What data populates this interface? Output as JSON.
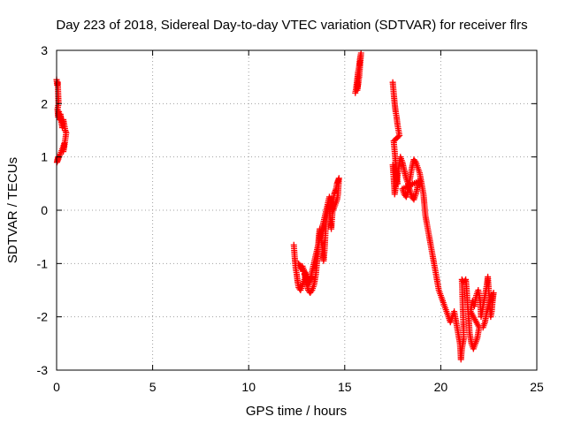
{
  "chart_data": {
    "type": "scatter",
    "title": "Day 223 of 2018, Sidereal Day-to-day VTEC variation (SDTVAR) for receiver flrs",
    "xlabel": "GPS time / hours",
    "ylabel": "SDTVAR / TECUs",
    "xlim": [
      0,
      25
    ],
    "ylim": [
      -3,
      3
    ],
    "xticks": [
      0,
      5,
      10,
      15,
      20,
      25
    ],
    "yticks": [
      -3,
      -2,
      -1,
      0,
      1,
      2,
      3
    ],
    "grid": true,
    "marker": "+",
    "color": "#ff0000",
    "segments": [
      [
        [
          0.0,
          2.45
        ],
        [
          0.03,
          2.35
        ],
        [
          0.06,
          2.4
        ],
        [
          0.08,
          2.2
        ],
        [
          0.1,
          2.0
        ],
        [
          0.05,
          1.9
        ],
        [
          0.08,
          1.75
        ],
        [
          0.12,
          1.85
        ],
        [
          0.15,
          1.7
        ],
        [
          0.2,
          1.8
        ],
        [
          0.25,
          1.65
        ],
        [
          0.3,
          1.55
        ],
        [
          0.35,
          1.7
        ],
        [
          0.4,
          1.6
        ],
        [
          0.45,
          1.5
        ],
        [
          0.5,
          1.45
        ],
        [
          0.4,
          1.2
        ],
        [
          0.35,
          1.1
        ],
        [
          0.4,
          1.25
        ],
        [
          0.3,
          1.15
        ],
        [
          0.02,
          0.9
        ],
        [
          0.05,
          0.95
        ],
        [
          0.08,
          1.0
        ]
      ],
      [
        [
          12.35,
          -0.65
        ],
        [
          12.4,
          -0.9
        ],
        [
          12.45,
          -1.1
        ],
        [
          12.5,
          -1.2
        ],
        [
          12.55,
          -1.35
        ],
        [
          12.6,
          -1.45
        ],
        [
          12.7,
          -1.5
        ],
        [
          12.8,
          -1.4
        ],
        [
          12.9,
          -1.3
        ],
        [
          13.0,
          -1.2
        ],
        [
          12.6,
          -1.0
        ],
        [
          12.7,
          -1.1
        ],
        [
          12.8,
          -1.05
        ],
        [
          12.9,
          -1.15
        ],
        [
          13.0,
          -1.35
        ],
        [
          13.1,
          -1.5
        ],
        [
          13.2,
          -1.55
        ],
        [
          13.3,
          -1.5
        ],
        [
          13.4,
          -1.4
        ],
        [
          13.5,
          -1.2
        ],
        [
          13.55,
          -1.0
        ],
        [
          13.6,
          -0.8
        ],
        [
          13.65,
          -0.5
        ],
        [
          13.7,
          -0.35
        ],
        [
          13.75,
          -0.45
        ],
        [
          13.8,
          -0.6
        ],
        [
          13.85,
          -0.8
        ],
        [
          13.9,
          -0.95
        ],
        [
          13.95,
          -0.75
        ],
        [
          14.0,
          -0.4
        ],
        [
          14.05,
          -0.1
        ],
        [
          14.1,
          0.0
        ],
        [
          14.15,
          0.1
        ],
        [
          14.2,
          0.05
        ],
        [
          14.25,
          -0.2
        ],
        [
          14.3,
          -0.35
        ],
        [
          14.35,
          -0.1
        ],
        [
          14.4,
          0.2
        ],
        [
          14.45,
          0.3
        ],
        [
          14.5,
          0.35
        ],
        [
          14.55,
          0.4
        ],
        [
          14.6,
          0.5
        ],
        [
          14.65,
          0.55
        ],
        [
          14.7,
          0.6
        ],
        [
          14.65,
          0.3
        ],
        [
          14.6,
          0.2
        ],
        [
          14.5,
          0.1
        ],
        [
          14.4,
          0.0
        ],
        [
          14.3,
          0.15
        ],
        [
          14.2,
          0.25
        ],
        [
          13.2,
          -1.3
        ],
        [
          13.3,
          -1.25
        ],
        [
          13.1,
          -1.4
        ],
        [
          12.9,
          -1.2
        ],
        [
          13.05,
          -1.25
        ]
      ],
      [
        [
          15.55,
          2.2
        ],
        [
          15.6,
          2.3
        ],
        [
          15.65,
          2.45
        ],
        [
          15.7,
          2.6
        ],
        [
          15.75,
          2.7
        ],
        [
          15.8,
          2.85
        ],
        [
          15.85,
          2.95
        ],
        [
          15.75,
          2.5
        ],
        [
          15.65,
          2.25
        ],
        [
          15.7,
          2.4
        ]
      ],
      [
        [
          17.5,
          2.4
        ],
        [
          17.55,
          2.2
        ],
        [
          17.6,
          2.0
        ],
        [
          17.65,
          1.85
        ],
        [
          17.7,
          1.75
        ],
        [
          17.75,
          1.6
        ],
        [
          17.8,
          1.5
        ],
        [
          17.85,
          1.4
        ],
        [
          17.55,
          1.3
        ],
        [
          17.6,
          1.1
        ],
        [
          17.65,
          0.9
        ],
        [
          17.7,
          0.7
        ],
        [
          17.75,
          0.5
        ],
        [
          17.5,
          0.85
        ],
        [
          17.55,
          0.6
        ],
        [
          17.6,
          0.3
        ],
        [
          17.9,
          1.0
        ],
        [
          18.0,
          0.9
        ],
        [
          18.1,
          0.75
        ],
        [
          18.2,
          0.6
        ],
        [
          18.3,
          0.5
        ],
        [
          18.4,
          0.35
        ],
        [
          18.5,
          0.25
        ],
        [
          18.6,
          0.2
        ],
        [
          18.7,
          0.3
        ],
        [
          18.8,
          0.45
        ],
        [
          18.9,
          0.55
        ],
        [
          18.0,
          0.4
        ],
        [
          18.1,
          0.3
        ],
        [
          18.2,
          0.25
        ],
        [
          18.3,
          0.35
        ],
        [
          18.4,
          0.6
        ],
        [
          18.5,
          0.8
        ],
        [
          18.6,
          0.95
        ],
        [
          18.7,
          0.9
        ],
        [
          18.8,
          0.8
        ],
        [
          18.9,
          0.7
        ],
        [
          19.0,
          0.5
        ],
        [
          19.1,
          0.3
        ],
        [
          19.15,
          0.1
        ],
        [
          19.2,
          -0.1
        ],
        [
          19.3,
          -0.3
        ],
        [
          19.4,
          -0.5
        ],
        [
          19.5,
          -0.7
        ],
        [
          19.6,
          -0.9
        ],
        [
          19.7,
          -1.1
        ],
        [
          19.8,
          -1.3
        ],
        [
          19.9,
          -1.5
        ],
        [
          20.0,
          -1.6
        ],
        [
          20.1,
          -1.7
        ],
        [
          20.2,
          -1.8
        ],
        [
          20.3,
          -1.9
        ],
        [
          20.4,
          -2.0
        ],
        [
          20.5,
          -2.1
        ],
        [
          20.6,
          -2.0
        ],
        [
          20.7,
          -1.9
        ],
        [
          20.8,
          -2.1
        ],
        [
          20.9,
          -2.3
        ],
        [
          21.0,
          -2.5
        ],
        [
          21.05,
          -2.8
        ],
        [
          21.1,
          -2.6
        ],
        [
          21.2,
          -2.4
        ],
        [
          21.1,
          -1.3
        ],
        [
          21.2,
          -1.35
        ],
        [
          21.3,
          -1.3
        ],
        [
          21.35,
          -1.5
        ],
        [
          21.4,
          -1.8
        ],
        [
          21.45,
          -2.0
        ],
        [
          21.5,
          -2.3
        ],
        [
          21.6,
          -2.5
        ],
        [
          21.7,
          -2.6
        ],
        [
          21.8,
          -2.5
        ],
        [
          21.9,
          -2.4
        ],
        [
          22.0,
          -2.2
        ],
        [
          21.55,
          -1.9
        ],
        [
          21.65,
          -1.7
        ],
        [
          21.75,
          -1.8
        ],
        [
          21.85,
          -1.6
        ],
        [
          21.95,
          -1.5
        ],
        [
          22.05,
          -1.7
        ],
        [
          22.1,
          -2.0
        ],
        [
          22.2,
          -1.8
        ],
        [
          22.3,
          -1.6
        ],
        [
          22.4,
          -1.4
        ],
        [
          22.45,
          -1.25
        ],
        [
          22.5,
          -1.5
        ],
        [
          22.55,
          -1.8
        ],
        [
          22.6,
          -2.0
        ],
        [
          22.65,
          -1.9
        ],
        [
          22.7,
          -1.7
        ],
        [
          22.75,
          -1.55
        ],
        [
          22.4,
          -1.9
        ],
        [
          22.3,
          -2.1
        ],
        [
          22.2,
          -2.2
        ]
      ]
    ]
  }
}
